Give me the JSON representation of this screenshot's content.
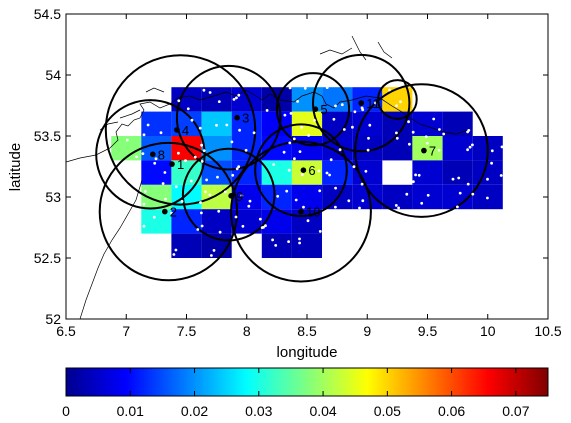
{
  "chart_data": {
    "type": "heatmap",
    "title": "",
    "xlabel": "longitude",
    "ylabel": "latitude",
    "xlim": [
      6.5,
      10.5
    ],
    "ylim": [
      52,
      54.5
    ],
    "xticks": [
      "6.5",
      "7",
      "7.5",
      "8",
      "8.5",
      "9",
      "9.5",
      "10",
      "10.5"
    ],
    "yticks": [
      "52",
      "52.5",
      "53",
      "53.5",
      "54",
      "54.5"
    ],
    "grid": false,
    "colormap": "jet",
    "colorbar": {
      "min": 0,
      "max": 0.075,
      "ticks": [
        "0",
        "0.01",
        "0.02",
        "0.03",
        "0.04",
        "0.05",
        "0.06",
        "0.07"
      ],
      "position": "bottom"
    },
    "cell_size": [
      0.25,
      0.2
    ],
    "cells": [
      [
        7.5,
        53.8,
        0.005
      ],
      [
        7.75,
        53.8,
        0.004
      ],
      [
        8.0,
        53.8,
        0.006
      ],
      [
        8.25,
        53.8,
        0.003
      ],
      [
        8.5,
        53.8,
        0.02
      ],
      [
        8.75,
        53.8,
        0.018
      ],
      [
        9.0,
        53.8,
        0.012
      ],
      [
        9.25,
        53.8,
        0.05
      ],
      [
        7.25,
        53.6,
        0.013
      ],
      [
        7.5,
        53.6,
        0.014
      ],
      [
        7.75,
        53.6,
        0.024
      ],
      [
        8.0,
        53.6,
        0.012
      ],
      [
        8.25,
        53.6,
        0.009
      ],
      [
        8.5,
        53.6,
        0.045
      ],
      [
        8.75,
        53.6,
        0.005
      ],
      [
        9.0,
        53.6,
        0.006
      ],
      [
        9.25,
        53.6,
        0.004
      ],
      [
        9.5,
        53.6,
        0.006
      ],
      [
        9.75,
        53.6,
        0.004
      ],
      [
        7.0,
        53.4,
        0.038
      ],
      [
        7.25,
        53.4,
        0.016
      ],
      [
        7.5,
        53.4,
        0.066
      ],
      [
        7.75,
        53.4,
        0.02
      ],
      [
        8.0,
        53.4,
        0.012
      ],
      [
        8.25,
        53.4,
        0.01
      ],
      [
        8.5,
        53.4,
        0.008
      ],
      [
        8.75,
        53.4,
        0.006
      ],
      [
        9.0,
        53.4,
        0.005
      ],
      [
        9.25,
        53.4,
        0.004
      ],
      [
        9.5,
        53.4,
        0.04
      ],
      [
        9.75,
        53.4,
        0.006
      ],
      [
        10.0,
        53.4,
        0.005
      ],
      [
        7.25,
        53.2,
        0.01
      ],
      [
        7.5,
        53.2,
        0.032
      ],
      [
        7.75,
        53.2,
        0.015
      ],
      [
        8.0,
        53.2,
        0.012
      ],
      [
        8.25,
        53.2,
        0.03
      ],
      [
        8.5,
        53.2,
        0.043
      ],
      [
        8.75,
        53.2,
        0.012
      ],
      [
        9.0,
        53.2,
        0.006
      ],
      [
        9.5,
        53.2,
        0.006
      ],
      [
        9.75,
        53.2,
        0.004
      ],
      [
        10.0,
        53.2,
        0.005
      ],
      [
        7.25,
        53.0,
        0.038
      ],
      [
        7.5,
        53.0,
        0.028
      ],
      [
        7.75,
        53.0,
        0.042
      ],
      [
        8.0,
        53.0,
        0.008
      ],
      [
        8.25,
        53.0,
        0.012
      ],
      [
        8.5,
        53.0,
        0.008
      ],
      [
        8.75,
        53.0,
        0.005
      ],
      [
        9.0,
        53.0,
        0.006
      ],
      [
        9.25,
        53.0,
        0.005
      ],
      [
        9.5,
        53.0,
        0.006
      ],
      [
        9.75,
        53.0,
        0.006
      ],
      [
        10.0,
        53.0,
        0.005
      ],
      [
        7.25,
        52.8,
        0.03
      ],
      [
        7.5,
        52.8,
        0.012
      ],
      [
        7.75,
        52.8,
        0.005
      ],
      [
        8.0,
        52.8,
        0.006
      ],
      [
        8.25,
        52.8,
        0.008
      ],
      [
        8.5,
        52.8,
        0.005
      ],
      [
        7.5,
        52.6,
        0.004
      ],
      [
        7.75,
        52.6,
        0.003
      ],
      [
        8.25,
        52.6,
        0.004
      ],
      [
        8.5,
        52.6,
        0.004
      ]
    ],
    "circles": [
      {
        "lon": 7.45,
        "lat": 53.55,
        "r_lon": 0.62
      },
      {
        "lon": 7.2,
        "lat": 53.35,
        "r_lon": 0.45
      },
      {
        "lon": 7.35,
        "lat": 52.88,
        "r_lon": 0.57
      },
      {
        "lon": 7.85,
        "lat": 53.65,
        "r_lon": 0.43
      },
      {
        "lon": 7.85,
        "lat": 53.02,
        "r_lon": 0.38
      },
      {
        "lon": 8.45,
        "lat": 53.22,
        "r_lon": 0.38
      },
      {
        "lon": 8.45,
        "lat": 52.88,
        "r_lon": 0.58
      },
      {
        "lon": 8.55,
        "lat": 53.72,
        "r_lon": 0.3
      },
      {
        "lon": 8.95,
        "lat": 53.77,
        "r_lon": 0.4
      },
      {
        "lon": 9.25,
        "lat": 53.8,
        "r_lon": 0.16
      },
      {
        "lon": 9.45,
        "lat": 53.38,
        "r_lon": 0.55
      }
    ],
    "stations": [
      {
        "id": "1",
        "lon": 7.38,
        "lat": 53.27
      },
      {
        "id": "2",
        "lon": 7.32,
        "lat": 52.88
      },
      {
        "id": "3",
        "lon": 7.92,
        "lat": 53.65
      },
      {
        "id": "4",
        "lon": 7.42,
        "lat": 53.55
      },
      {
        "id": "5",
        "lon": 8.57,
        "lat": 53.72
      },
      {
        "id": "6",
        "lon": 8.47,
        "lat": 53.22
      },
      {
        "id": "7",
        "lon": 9.47,
        "lat": 53.38
      },
      {
        "id": "8",
        "lon": 7.22,
        "lat": 53.35
      },
      {
        "id": "9",
        "lon": 7.87,
        "lat": 53.01
      },
      {
        "id": "10",
        "lon": 8.45,
        "lat": 52.88
      },
      {
        "id": "11",
        "lon": 8.95,
        "lat": 53.77
      }
    ]
  }
}
